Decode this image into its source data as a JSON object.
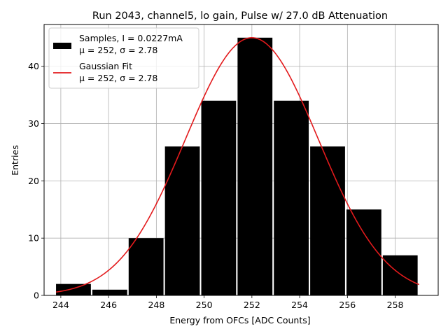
{
  "chart_data": {
    "type": "bar",
    "title": "Run 2043, channel5, lo gain, Pulse w/ 27.0 dB Attenuation",
    "xlabel": "Energy from OFCs [ADC Counts]",
    "ylabel": "Entries",
    "xlim": [
      243.3,
      259.8
    ],
    "ylim": [
      0,
      47.3
    ],
    "xticks": [
      244,
      246,
      248,
      250,
      252,
      254,
      256,
      258
    ],
    "yticks": [
      0,
      10,
      20,
      30,
      40
    ],
    "grid": true,
    "bin_edges": [
      243.8,
      245.32,
      246.84,
      248.36,
      249.88,
      251.4,
      252.92,
      254.44,
      255.96,
      257.48,
      259.0
    ],
    "counts": [
      2,
      1,
      10,
      26,
      34,
      45,
      34,
      26,
      15,
      7
    ],
    "bar_color": "#000000",
    "fit": {
      "name": "Gaussian Fit",
      "mu": 252.0,
      "sigma": 2.78,
      "amplitude": 45.0,
      "x_range": [
        243.8,
        259.0
      ],
      "color": "#e31a1c"
    },
    "legend": {
      "position": "top-left",
      "entries": [
        {
          "kind": "bar",
          "line1": "Samples, I = 0.0227mA",
          "line2": "μ = 252, σ = 2.78"
        },
        {
          "kind": "line",
          "line1": "Gaussian Fit",
          "line2": "μ = 252, σ = 2.78"
        }
      ]
    }
  }
}
